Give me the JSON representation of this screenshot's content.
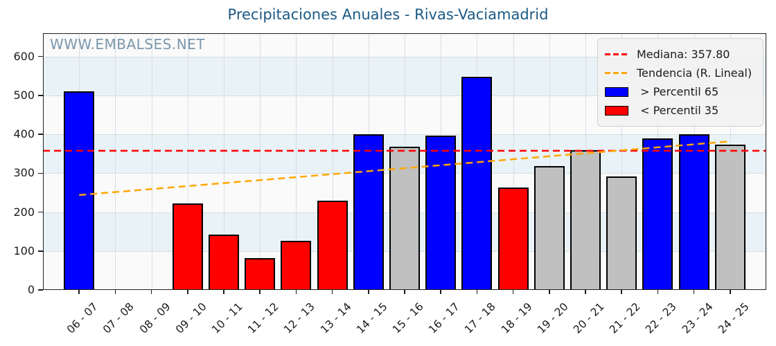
{
  "title": "Precipitaciones Anuales - Rivas-Vaciamadrid",
  "watermark": "WWW.EMBALSES.NET",
  "legend": {
    "median_label": "Mediana: 357.80",
    "trend_label": "Tendencia (R. Lineal)",
    "p65_label": " > Percentil 65",
    "p35_label": " < Percentil 35"
  },
  "colors": {
    "above_p65": "#0000ff",
    "below_p35": "#ff0000",
    "mid": "#c0c0c0",
    "median_line": "#ff0000",
    "trend_line": "#ffa500",
    "title": "#1c5a85",
    "band": "#e9f2f7"
  },
  "chart_data": {
    "type": "bar",
    "title": "Precipitaciones Anuales - Rivas-Vaciamadrid",
    "categories": [
      "06 - 07",
      "07 - 08",
      "08 - 09",
      "09 - 10",
      "10 - 11",
      "11 - 12",
      "12 - 13",
      "13 - 14",
      "14 - 15",
      "15 - 16",
      "16 - 17",
      "17 - 18",
      "18 - 19",
      "19 - 20",
      "20 - 21",
      "21 - 22",
      "22 - 23",
      "23 - 24",
      "24 - 25"
    ],
    "values": [
      510,
      null,
      null,
      222,
      142,
      82,
      127,
      230,
      400,
      369,
      397,
      548,
      263,
      318,
      360,
      292,
      390,
      401,
      374
    ],
    "classification": [
      "above",
      "none",
      "none",
      "below",
      "below",
      "below",
      "below",
      "below",
      "above",
      "mid",
      "above",
      "above",
      "below",
      "mid",
      "mid",
      "mid",
      "above",
      "above",
      "mid"
    ],
    "median": 357.8,
    "trend_line": {
      "start_category": "06 - 07",
      "start_value": 244,
      "end_category": "24 - 25",
      "end_value": 382
    },
    "ylim": [
      0,
      660
    ],
    "yticks": [
      0,
      100,
      200,
      300,
      400,
      500,
      600
    ],
    "grid": true,
    "legend_position": "upper right",
    "xlabel": "",
    "ylabel": ""
  }
}
